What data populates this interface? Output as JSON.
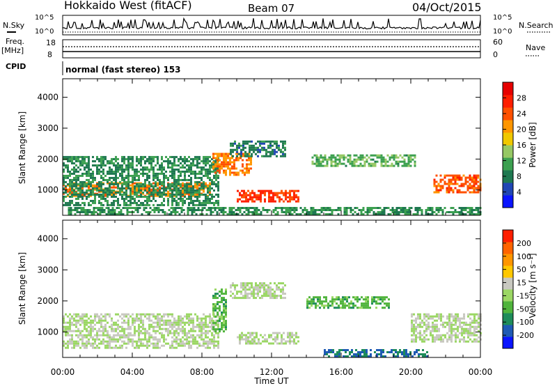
{
  "header": {
    "station": "Hokkaido West (fitACF)",
    "beam": "Beam 07",
    "date": "04/Oct/2015"
  },
  "params": {
    "nsky_label": "N.Sky",
    "nsky_ticks": [
      "10^5",
      "10^0"
    ],
    "nsearch_label": "N.Search",
    "freq_label": "Freq.",
    "freq_unit": "[MHz]",
    "freq_ticks": [
      "18",
      "8"
    ],
    "nave_ticks": [
      "60",
      "0"
    ],
    "nave_label": "Nave",
    "cpid_label": "CPID",
    "cpid_text": "normal (fast stereo) 153"
  },
  "axes": {
    "ylabel": "Slant Range [km]",
    "yticks": [
      "4000",
      "3000",
      "2000",
      "1000"
    ],
    "xticks": [
      "00:00",
      "04:00",
      "08:00",
      "12:00",
      "16:00",
      "20:00",
      "00:00"
    ],
    "xlabel": "Time UT"
  },
  "colorbars": {
    "power": {
      "label": "Power [dB]",
      "ticks": [
        "28",
        "24",
        "20",
        "16",
        "12",
        "8",
        "4"
      ],
      "colors": [
        "#0a14ff",
        "#2046b4",
        "#1e7850",
        "#3ca050",
        "#96c864",
        "#f0c800",
        "#ff9600",
        "#ff5000",
        "#ff1e00",
        "#e60000"
      ]
    },
    "velocity": {
      "label": "Velocity [m s⁻¹]",
      "ticks": [
        "200",
        "100",
        "50",
        "15",
        "-15",
        "-50",
        "-100",
        "-200"
      ],
      "colors": [
        "#0a14ff",
        "#1e5ab4",
        "#1e8c5a",
        "#50b43c",
        "#9bd764",
        "#c8c8c0",
        "#ffc800",
        "#ff9600",
        "#ff6400",
        "#ff1e00"
      ]
    }
  },
  "chart_data": [
    {
      "type": "heatmap",
      "title": "Power",
      "xlabel": "Time UT",
      "ylabel": "Slant Range [km]",
      "x_range_hours": [
        0,
        24
      ],
      "ylim_km": [
        180,
        4600
      ],
      "color_scale_label": "Power [dB]",
      "color_scale_range": [
        0,
        32
      ],
      "regions": [
        {
          "t_start": 0.0,
          "t_end": 8.5,
          "range_km": [
            800,
            1250
          ],
          "value": 22
        },
        {
          "t_start": 0.0,
          "t_end": 9.0,
          "range_km": [
            500,
            2100
          ],
          "value": 9
        },
        {
          "t_start": 8.6,
          "t_end": 10.8,
          "range_km": [
            1500,
            2200
          ],
          "value": 22
        },
        {
          "t_start": 10.0,
          "t_end": 13.6,
          "range_km": [
            650,
            1000
          ],
          "value": 26
        },
        {
          "t_start": 14.3,
          "t_end": 20.2,
          "range_km": [
            1800,
            2150
          ],
          "value": 12
        },
        {
          "t_start": 9.6,
          "t_end": 12.8,
          "range_km": [
            2100,
            2600
          ],
          "value": 8
        },
        {
          "t_start": 21.3,
          "t_end": 24.0,
          "range_km": [
            900,
            1500
          ],
          "value": 24
        },
        {
          "t_start": 0.3,
          "t_end": 24.0,
          "range_km": [
            200,
            450
          ],
          "value": 10
        }
      ]
    },
    {
      "type": "heatmap",
      "title": "Velocity",
      "xlabel": "Time UT",
      "ylabel": "Slant Range [km]",
      "x_range_hours": [
        0,
        24
      ],
      "ylim_km": [
        180,
        4600
      ],
      "color_scale_label": "Velocity [m s⁻¹]",
      "color_scale_range": [
        -200,
        200
      ],
      "regions": [
        {
          "t_start": 0.0,
          "t_end": 9.0,
          "range_km": [
            500,
            1600
          ],
          "value": 0
        },
        {
          "t_start": 8.6,
          "t_end": 9.4,
          "range_km": [
            1000,
            2400
          ],
          "value": -60
        },
        {
          "t_start": 10.0,
          "t_end": 13.6,
          "range_km": [
            650,
            1000
          ],
          "value": 0
        },
        {
          "t_start": 14.0,
          "t_end": 18.8,
          "range_km": [
            1800,
            2150
          ],
          "value": -60
        },
        {
          "t_start": 9.6,
          "t_end": 12.8,
          "range_km": [
            2100,
            2600
          ],
          "value": 0
        },
        {
          "t_start": 20.0,
          "t_end": 24.0,
          "range_km": [
            700,
            1600
          ],
          "value": 0
        },
        {
          "t_start": 15.0,
          "t_end": 21.0,
          "range_km": [
            200,
            450
          ],
          "value": -120
        }
      ]
    }
  ]
}
